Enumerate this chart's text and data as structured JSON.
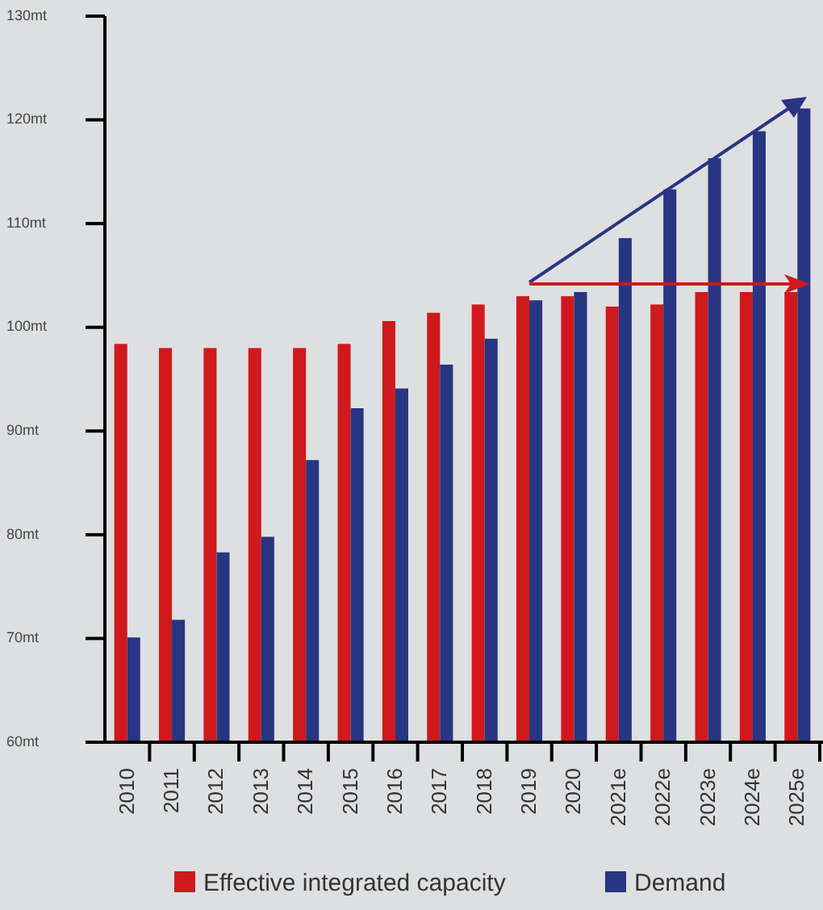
{
  "chart_data": {
    "type": "bar",
    "categories": [
      "2010",
      "2011",
      "2012",
      "2013",
      "2014",
      "2015",
      "2016",
      "2017",
      "2018",
      "2019",
      "2020",
      "2021e",
      "2022e",
      "2023e",
      "2024e",
      "2025e"
    ],
    "series": [
      {
        "name": "Effective integrated capacity",
        "color": "#d0191c",
        "values": [
          98.4,
          98,
          98,
          98,
          98,
          98.4,
          100.6,
          101.4,
          102.2,
          103,
          103,
          102,
          102.2,
          103.4,
          103.4,
          103.4
        ]
      },
      {
        "name": "Demand",
        "color": "#283583",
        "values": [
          70.1,
          71.8,
          78.3,
          79.8,
          87.2,
          92.2,
          94.1,
          96.4,
          98.9,
          102.6,
          103.4,
          108.6,
          113.3,
          116.3,
          118.9,
          121.1
        ]
      }
    ],
    "ylim": [
      60,
      130
    ],
    "yticks": [
      {
        "value": 60,
        "label": "60mt"
      },
      {
        "value": 70,
        "label": "70mt"
      },
      {
        "value": 80,
        "label": "80mt"
      },
      {
        "value": 90,
        "label": "90mt"
      },
      {
        "value": 100,
        "label": "100mt"
      },
      {
        "value": 110,
        "label": "110mt"
      },
      {
        "value": 120,
        "label": "120mt"
      },
      {
        "value": 130,
        "label": "130mt"
      }
    ],
    "grid": false,
    "legend": "bottom"
  }
}
